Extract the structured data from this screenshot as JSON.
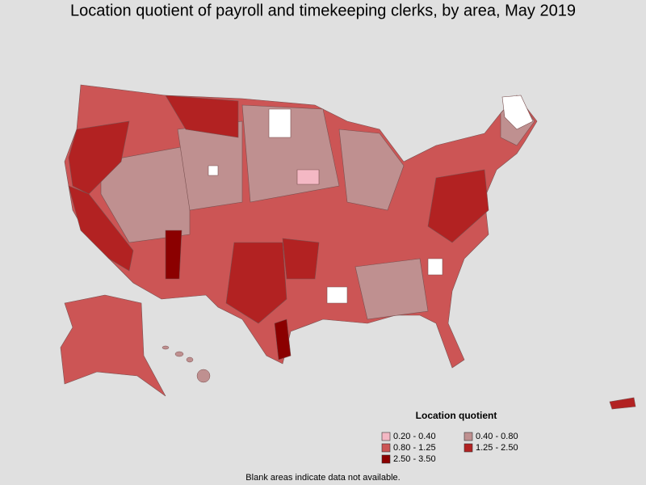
{
  "title": "Location quotient of payroll and timekeeping clerks, by area, May 2019",
  "legend": {
    "title": "Location quotient",
    "items": [
      {
        "label": "0.20 - 0.40",
        "color": "#f4b8c4"
      },
      {
        "label": "0.40 - 0.80",
        "color": "#bf9090"
      },
      {
        "label": "0.80 - 1.25",
        "color": "#cc5555"
      },
      {
        "label": "1.25 - 2.50",
        "color": "#b22222"
      },
      {
        "label": "2.50 - 3.50",
        "color": "#8b0000"
      }
    ]
  },
  "footnote": "Blank areas indicate data not available."
}
